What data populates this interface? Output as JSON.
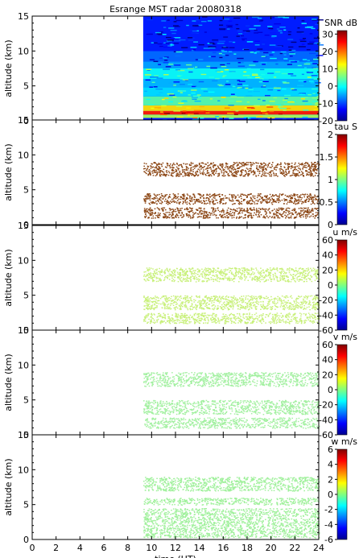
{
  "chart_data": [
    {
      "type": "heatmap",
      "title": "Esrange MST radar 20080318",
      "ylabel": "altitude (km)",
      "xlabel": "",
      "colorbar_label": "SNR dB",
      "colorbar_ticks": [
        "30",
        "20",
        "10",
        "0",
        "-10",
        "-20"
      ],
      "clim": [
        -20,
        32
      ],
      "ylim": [
        0,
        15
      ],
      "xlim": [
        0,
        24
      ],
      "yticks": [
        "0",
        "5",
        "10",
        "15"
      ],
      "data_time_range": [
        9.3,
        24
      ],
      "layers": [
        {
          "altitude": [
            0.0,
            0.4
          ],
          "value": -12
        },
        {
          "altitude": [
            0.4,
            0.9
          ],
          "value": 8
        },
        {
          "altitude": [
            0.9,
            1.4
          ],
          "value": 24
        },
        {
          "altitude": [
            1.4,
            2.2
          ],
          "value": 14
        },
        {
          "altitude": [
            2.2,
            3.5
          ],
          "value": 4
        },
        {
          "altitude": [
            3.5,
            4.8
          ],
          "value": -2
        },
        {
          "altitude": [
            4.8,
            6.0
          ],
          "value": -4
        },
        {
          "altitude": [
            6.0,
            7.5
          ],
          "value": 0
        },
        {
          "altitude": [
            7.5,
            8.5
          ],
          "value": -5
        },
        {
          "altitude": [
            8.5,
            10.0
          ],
          "value": -8
        },
        {
          "altitude": [
            10.0,
            15.0
          ],
          "value": -12
        }
      ]
    },
    {
      "type": "scatter",
      "ylabel": "altitude (km)",
      "colorbar_label": "tau S",
      "colorbar_ticks": [
        "2",
        "1.5",
        "1",
        "0.5",
        "0"
      ],
      "clim": [
        0,
        2
      ],
      "ylim": [
        0,
        15
      ],
      "xlim": [
        0,
        24
      ],
      "yticks": [
        "0",
        "5",
        "10",
        "15"
      ],
      "data_time_range": [
        9.3,
        24
      ],
      "color": "#8b4513",
      "bands": [
        {
          "altitude": [
            7.0,
            9.0
          ]
        },
        {
          "altitude": [
            3.0,
            4.5
          ]
        },
        {
          "altitude": [
            1.0,
            2.5
          ]
        }
      ]
    },
    {
      "type": "scatter",
      "ylabel": "altitude (km)",
      "colorbar_label": "u m/s",
      "colorbar_ticks": [
        "60",
        "40",
        "20",
        "0",
        "-20",
        "-40",
        "-60"
      ],
      "clim": [
        -60,
        60
      ],
      "ylim": [
        0,
        15
      ],
      "xlim": [
        0,
        24
      ],
      "yticks": [
        "0",
        "5",
        "10",
        "15"
      ],
      "data_time_range": [
        9.3,
        24
      ],
      "color": "#c8f07a",
      "bands": [
        {
          "altitude": [
            7.0,
            9.0
          ]
        },
        {
          "altitude": [
            3.0,
            5.0
          ]
        },
        {
          "altitude": [
            1.0,
            2.5
          ]
        }
      ]
    },
    {
      "type": "scatter",
      "ylabel": "altitude (km)",
      "colorbar_label": "v m/s",
      "colorbar_ticks": [
        "60",
        "40",
        "20",
        "0",
        "-20",
        "-40",
        "-60"
      ],
      "clim": [
        -60,
        60
      ],
      "ylim": [
        0,
        15
      ],
      "xlim": [
        0,
        24
      ],
      "yticks": [
        "0",
        "5",
        "10",
        "15"
      ],
      "data_time_range": [
        9.3,
        24
      ],
      "color": "#a2f0a0",
      "bands": [
        {
          "altitude": [
            7.0,
            9.0
          ]
        },
        {
          "altitude": [
            3.0,
            5.0
          ]
        },
        {
          "altitude": [
            1.0,
            2.5
          ]
        }
      ]
    },
    {
      "type": "scatter",
      "ylabel": "altitude (km)",
      "xlabel": "time (UT)",
      "xticks": [
        "0",
        "2",
        "4",
        "6",
        "8",
        "10",
        "12",
        "14",
        "16",
        "18",
        "20",
        "22",
        "24"
      ],
      "colorbar_label": "w m/s",
      "colorbar_ticks": [
        "6",
        "4",
        "2",
        "0",
        "-2",
        "-4",
        "-6"
      ],
      "clim": [
        -6,
        6
      ],
      "ylim": [
        0,
        15
      ],
      "xlim": [
        0,
        24
      ],
      "yticks": [
        "0",
        "5",
        "10",
        "15"
      ],
      "data_time_range": [
        9.3,
        24
      ],
      "color": "#9ef09a",
      "bands": [
        {
          "altitude": [
            7.0,
            9.0
          ]
        },
        {
          "altitude": [
            5.0,
            6.0
          ]
        },
        {
          "altitude": [
            0.3,
            4.5
          ]
        }
      ]
    }
  ]
}
